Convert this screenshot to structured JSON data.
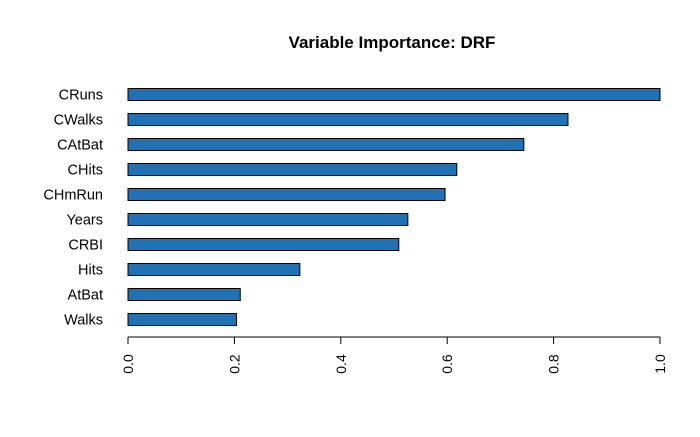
{
  "chart_data": {
    "type": "bar",
    "orientation": "horizontal",
    "title": "Variable Importance: DRF",
    "xlabel": "",
    "ylabel": "",
    "categories": [
      "CRuns",
      "CWalks",
      "CAtBat",
      "CHits",
      "CHmRun",
      "Years",
      "CRBI",
      "Hits",
      "AtBat",
      "Walks"
    ],
    "values": [
      1.0,
      0.827,
      0.744,
      0.618,
      0.596,
      0.526,
      0.509,
      0.323,
      0.211,
      0.204
    ],
    "xlim": [
      0,
      1
    ],
    "xticks": [
      0,
      0.2,
      0.4,
      0.6,
      0.8,
      1
    ],
    "xtick_labels": [
      "0.0",
      "0.2",
      "0.4",
      "0.6",
      "0.8",
      "1.0"
    ],
    "xtick_label_rotation": "vertical",
    "grid": false,
    "legend": "none",
    "bar_color": "#2171B5",
    "bar_edge_color": "#000000"
  }
}
